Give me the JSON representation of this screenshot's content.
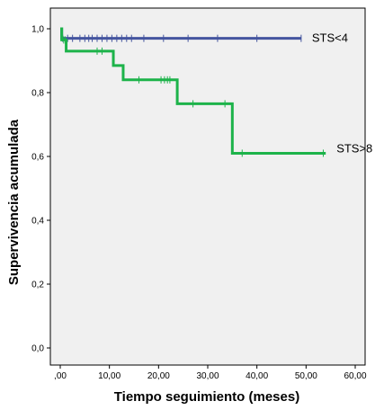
{
  "chart_data": {
    "type": "line",
    "subtype": "kaplan-meier step",
    "xlabel": "Tiempo seguimiento (meses)",
    "ylabel": "Supervivencia acumulada",
    "xlim": [
      0,
      60
    ],
    "ylim": [
      0,
      1
    ],
    "x_ticks": [
      ",00",
      "10,00",
      "20,00",
      "30,00",
      "40,00",
      "50,00",
      "60,00"
    ],
    "y_ticks": [
      "0,0",
      "0,2",
      "0,4",
      "0,6",
      "0,8",
      "1,0"
    ],
    "grid": false,
    "background": "#f0f0f0",
    "series": [
      {
        "name": "STS<4",
        "color": "#44559f",
        "steps": [
          [
            0,
            1.0
          ],
          [
            0.3,
            0.97
          ],
          [
            49,
            0.97
          ]
        ],
        "censored": [
          0.5,
          1.5,
          2.5,
          4,
          5,
          5.8,
          6.5,
          7.5,
          8.5,
          9.5,
          10.5,
          11.5,
          12.5,
          13.5,
          14.5,
          17,
          21,
          26,
          32,
          40,
          49
        ]
      },
      {
        "name": "STS>8",
        "color": "#1db34a",
        "steps": [
          [
            0,
            1.0
          ],
          [
            0.3,
            0.965
          ],
          [
            1.2,
            0.93
          ],
          [
            10.8,
            0.885
          ],
          [
            12.8,
            0.84
          ],
          [
            23.8,
            0.765
          ],
          [
            35,
            0.61
          ],
          [
            54,
            0.61
          ]
        ],
        "censored": [
          0.7,
          1.0,
          7.5,
          8.5,
          16,
          20.5,
          21.2,
          21.8,
          22.3,
          27,
          33.5,
          37,
          53.5
        ]
      }
    ]
  }
}
